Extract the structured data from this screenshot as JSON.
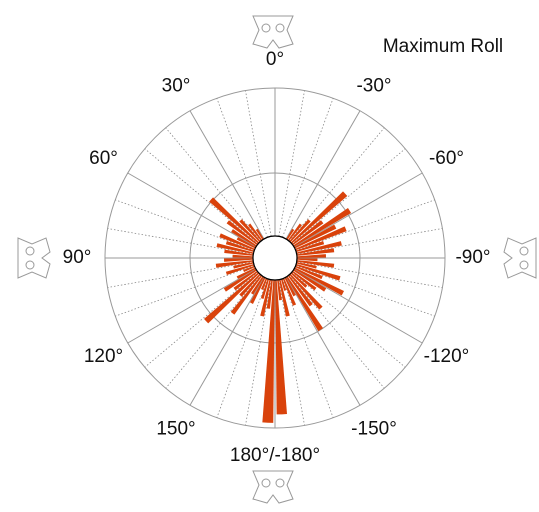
{
  "chart_data": {
    "type": "polar-histogram",
    "title": "Maximum Roll",
    "bins": [
      -180,
      -175,
      -170,
      -165,
      -160,
      -155,
      -150,
      -145,
      -140,
      -135,
      -130,
      -125,
      -120,
      -115,
      -110,
      -105,
      -100,
      -95,
      -90,
      -85,
      -80,
      -75,
      -70,
      -65,
      -60,
      -55,
      -50,
      -45,
      -40,
      -35,
      -30,
      -25,
      -20,
      -15,
      -10,
      -5,
      0,
      5,
      10,
      15,
      20,
      25,
      30,
      35,
      40,
      45,
      50,
      55,
      60,
      65,
      70,
      75,
      80,
      85,
      90,
      95,
      100,
      105,
      110,
      115,
      120,
      125,
      130,
      135,
      140,
      145,
      150,
      155,
      160,
      165,
      170,
      175,
      180
    ],
    "values": [
      18.4,
      5,
      7,
      4,
      6,
      5,
      10,
      7,
      8,
      5,
      6,
      7,
      9,
      6,
      8,
      5,
      7,
      5,
      6,
      7,
      8,
      6,
      9,
      8,
      10.4,
      7,
      11.2,
      6,
      5,
      4,
      0,
      0,
      0,
      0,
      0,
      0,
      0,
      0,
      0,
      0,
      0,
      0,
      4,
      5,
      6,
      10.2,
      7,
      6,
      5,
      7,
      6,
      7,
      6,
      5,
      6,
      7,
      5,
      6,
      4,
      5,
      7,
      6,
      11,
      6,
      8.2,
      5,
      6,
      4,
      5,
      7,
      6,
      19.4
    ],
    "color": "#d9420b",
    "rlim": [
      0,
      20
    ],
    "rticks": [
      10,
      20
    ],
    "xticks": [
      {
        "value": 0,
        "label": "0°"
      },
      {
        "value": 30,
        "label": "30°"
      },
      {
        "value": 60,
        "label": "60°"
      },
      {
        "value": 90,
        "label": "90°"
      },
      {
        "value": 120,
        "label": "120°"
      },
      {
        "value": 150,
        "label": "150°"
      },
      {
        "value": 180,
        "label": "180°/-180°"
      },
      {
        "value": -150,
        "label": "-150°"
      },
      {
        "value": -120,
        "label": "-120°"
      },
      {
        "value": -90,
        "label": "-90°"
      },
      {
        "value": -60,
        "label": "-60°"
      },
      {
        "value": -30,
        "label": "-30°"
      }
    ],
    "grid": true
  }
}
